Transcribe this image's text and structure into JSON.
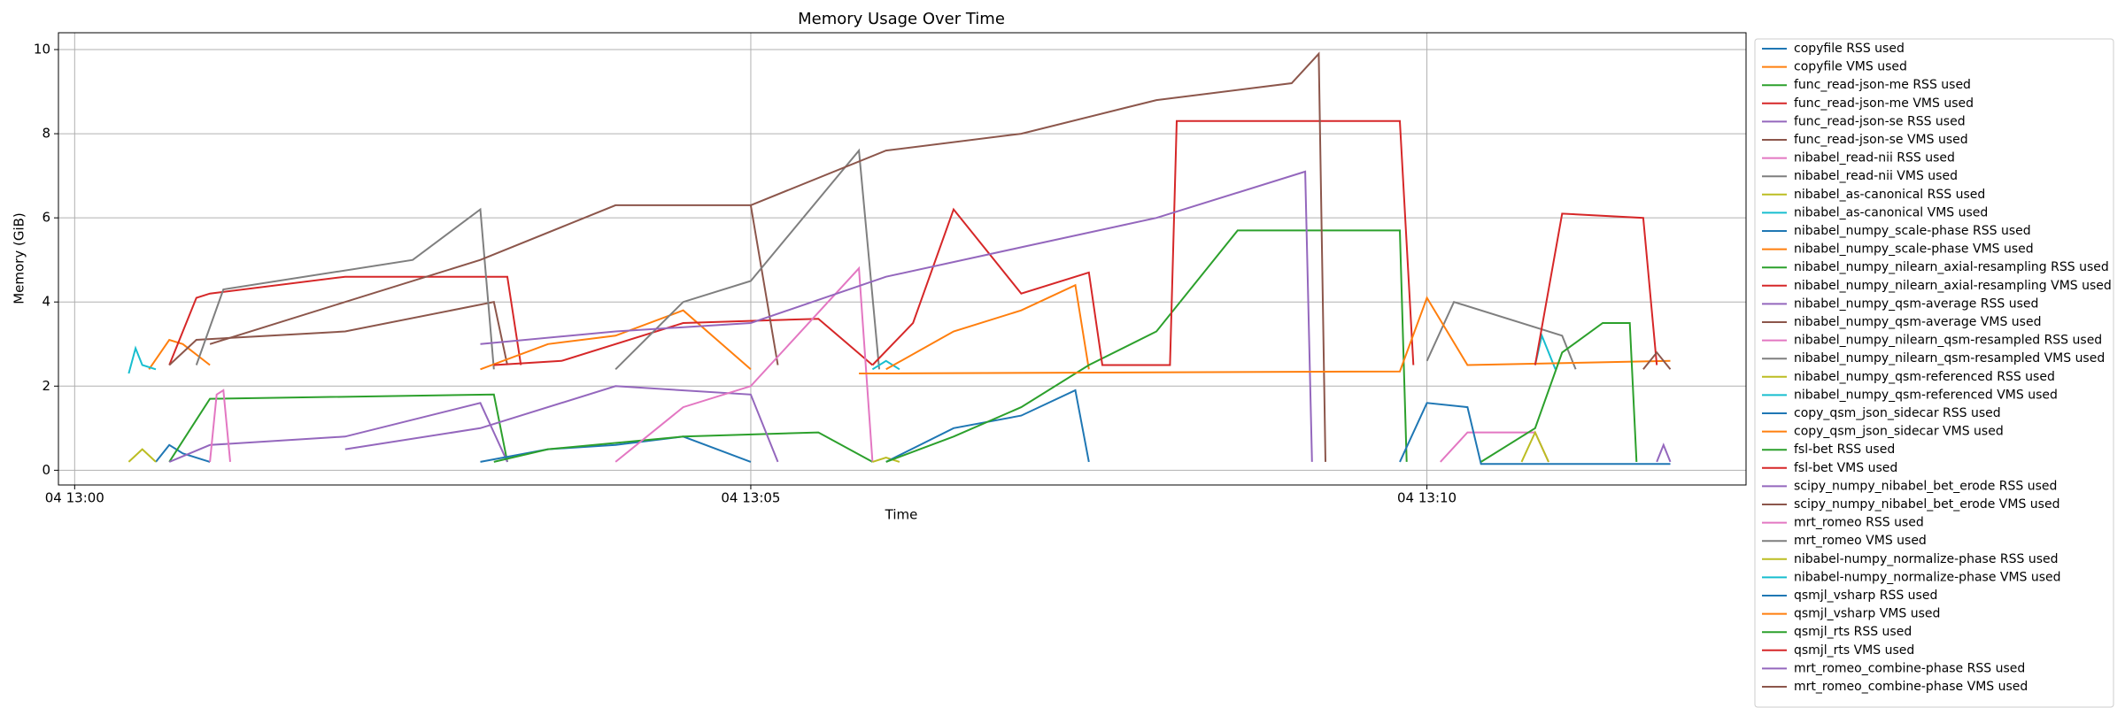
{
  "chart_data": {
    "type": "line",
    "title": "Memory Usage Over Time",
    "x_label": "Time",
    "y_label": "Memory (GiB)",
    "xlim": [
      -0.12,
      12.36
    ],
    "ylim": [
      -0.35,
      10.4
    ],
    "xticks": [
      {
        "value": 0,
        "label": "04 13:00"
      },
      {
        "value": 5,
        "label": "04 13:05"
      },
      {
        "value": 10,
        "label": "04 13:10"
      }
    ],
    "yticks": [
      0,
      2,
      4,
      6,
      8,
      10
    ],
    "grid": true,
    "legend": "outside right",
    "series": [
      {
        "name": "copyfile RSS used",
        "color": "#1f77b4",
        "x": [
          0.6,
          0.7,
          0.8,
          1.0
        ],
        "values": [
          0.2,
          0.6,
          0.4,
          0.2
        ]
      },
      {
        "name": "copyfile VMS used",
        "color": "#ff7f0e",
        "x": [
          0.55,
          0.7,
          0.8,
          1.0
        ],
        "values": [
          2.4,
          3.1,
          3.0,
          2.5
        ]
      },
      {
        "name": "func_read-json-me RSS used",
        "color": "#2ca02c",
        "x": [
          0.7,
          0.9,
          1.0,
          3.1,
          3.2
        ],
        "values": [
          0.2,
          1.2,
          1.7,
          1.8,
          0.2
        ]
      },
      {
        "name": "func_read-json-me VMS used",
        "color": "#d62728",
        "x": [
          0.7,
          0.9,
          1.0,
          2.0,
          3.2,
          3.3
        ],
        "values": [
          2.5,
          4.1,
          4.2,
          4.6,
          4.6,
          2.5
        ]
      },
      {
        "name": "func_read-json-se RSS used",
        "color": "#9467bd",
        "x": [
          0.7,
          1.0,
          2.0,
          3.0,
          3.2
        ],
        "values": [
          0.2,
          0.6,
          0.8,
          1.6,
          0.2
        ]
      },
      {
        "name": "func_read-json-se VMS used",
        "color": "#8c564b",
        "x": [
          0.7,
          0.9,
          2.0,
          3.1,
          3.2
        ],
        "values": [
          2.5,
          3.1,
          3.3,
          4.0,
          2.5
        ]
      },
      {
        "name": "nibabel_read-nii RSS used",
        "color": "#e377c2",
        "x": [
          1.0,
          1.05,
          1.1,
          1.15
        ],
        "values": [
          0.2,
          1.8,
          1.9,
          0.2
        ]
      },
      {
        "name": "nibabel_read-nii VMS used",
        "color": "#7f7f7f",
        "x": [
          0.9,
          1.1,
          2.5,
          3.0,
          3.1
        ],
        "values": [
          2.5,
          4.3,
          5.0,
          6.2,
          2.4
        ]
      },
      {
        "name": "nibabel_as-canonical RSS used",
        "color": "#bcbd22",
        "x": [
          0.4,
          0.5,
          0.6
        ],
        "values": [
          0.2,
          0.5,
          0.2
        ]
      },
      {
        "name": "nibabel_as-canonical VMS used",
        "color": "#17becf",
        "x": [
          0.4,
          0.45,
          0.5,
          0.6
        ],
        "values": [
          2.3,
          2.9,
          2.5,
          2.4
        ]
      },
      {
        "name": "nibabel_numpy_scale-phase RSS used",
        "color": "#1f77b4",
        "x": [
          3.0,
          3.5,
          4.0,
          4.5,
          5.0
        ],
        "values": [
          0.2,
          0.5,
          0.6,
          0.8,
          0.2
        ]
      },
      {
        "name": "nibabel_numpy_scale-phase VMS used",
        "color": "#ff7f0e",
        "x": [
          3.0,
          3.5,
          4.0,
          4.5,
          5.0
        ],
        "values": [
          2.4,
          3.0,
          3.2,
          3.8,
          2.4
        ]
      },
      {
        "name": "nibabel_numpy_nilearn_axial-resampling RSS used",
        "color": "#2ca02c",
        "x": [
          3.1,
          3.5,
          4.5,
          5.5,
          5.9
        ],
        "values": [
          0.2,
          0.5,
          0.8,
          0.9,
          0.2
        ]
      },
      {
        "name": "nibabel_numpy_nilearn_axial-resampling VMS used",
        "color": "#d62728",
        "x": [
          3.1,
          3.6,
          4.5,
          5.5,
          5.9
        ],
        "values": [
          2.5,
          2.6,
          3.5,
          3.6,
          2.5
        ]
      },
      {
        "name": "nibabel_numpy_qsm-average RSS used",
        "color": "#9467bd",
        "x": [
          2.0,
          3.0,
          4.0,
          5.0,
          5.2
        ],
        "values": [
          0.5,
          1.0,
          2.0,
          1.8,
          0.2
        ]
      },
      {
        "name": "nibabel_numpy_qsm-average VMS used",
        "color": "#8c564b",
        "x": [
          1.0,
          2.0,
          3.0,
          4.0,
          5.0,
          5.2
        ],
        "values": [
          3.0,
          4.0,
          5.0,
          6.3,
          6.3,
          2.5
        ]
      },
      {
        "name": "nibabel_numpy_nilearn_qsm-resampled RSS used",
        "color": "#e377c2",
        "x": [
          4.0,
          4.5,
          5.0,
          5.8,
          5.9
        ],
        "values": [
          0.2,
          1.5,
          2.0,
          4.8,
          0.2
        ]
      },
      {
        "name": "nibabel_numpy_nilearn_qsm-resampled VMS used",
        "color": "#7f7f7f",
        "x": [
          4.0,
          4.5,
          5.0,
          5.8,
          5.95
        ],
        "values": [
          2.4,
          4.0,
          4.5,
          7.6,
          2.4
        ]
      },
      {
        "name": "nibabel_numpy_qsm-referenced RSS used",
        "color": "#bcbd22",
        "x": [
          5.9,
          6.0,
          6.1
        ],
        "values": [
          0.2,
          0.3,
          0.2
        ]
      },
      {
        "name": "nibabel_numpy_qsm-referenced VMS used",
        "color": "#17becf",
        "x": [
          5.9,
          6.0,
          6.1
        ],
        "values": [
          2.4,
          2.6,
          2.4
        ]
      },
      {
        "name": "copy_qsm_json_sidecar RSS used",
        "color": "#1f77b4",
        "x": [
          6.0,
          6.5,
          7.0,
          7.4,
          7.5
        ],
        "values": [
          0.2,
          1.0,
          1.3,
          1.9,
          0.2
        ]
      },
      {
        "name": "copy_qsm_json_sidecar VMS used",
        "color": "#ff7f0e",
        "x": [
          6.0,
          6.5,
          7.0,
          7.4,
          7.5
        ],
        "values": [
          2.4,
          3.3,
          3.8,
          4.4,
          2.4
        ]
      },
      {
        "name": "fsl-bet RSS used",
        "color": "#2ca02c",
        "x": [
          6.0,
          6.5,
          7.0,
          7.5,
          8.0,
          8.6,
          9.8,
          9.85
        ],
        "values": [
          0.2,
          0.8,
          1.5,
          2.5,
          3.3,
          5.7,
          5.7,
          0.2
        ]
      },
      {
        "name": "fsl-bet VMS used",
        "color": "#d62728",
        "x": [
          5.9,
          6.2,
          6.5,
          7.0,
          7.5,
          7.6,
          8.1,
          8.15,
          9.8,
          9.9
        ],
        "values": [
          2.5,
          3.5,
          6.2,
          4.2,
          4.7,
          2.5,
          2.5,
          8.3,
          8.3,
          2.5
        ]
      },
      {
        "name": "scipy_numpy_nibabel_bet_erode RSS used",
        "color": "#9467bd",
        "x": [
          3.0,
          4.0,
          5.0,
          6.0,
          7.0,
          8.0,
          9.1,
          9.15
        ],
        "values": [
          3.0,
          3.3,
          3.5,
          4.6,
          5.3,
          6.0,
          7.1,
          0.2
        ]
      },
      {
        "name": "scipy_numpy_nibabel_bet_erode VMS used",
        "color": "#8c564b",
        "x": [
          5.0,
          6.0,
          7.0,
          8.0,
          9.0,
          9.2,
          9.25
        ],
        "values": [
          6.3,
          7.6,
          8.0,
          8.8,
          9.2,
          9.9,
          0.2
        ]
      },
      {
        "name": "mrt_romeo RSS used",
        "color": "#e377c2",
        "x": [
          10.1,
          10.3,
          10.8,
          10.9
        ],
        "values": [
          0.2,
          0.9,
          0.9,
          0.2
        ]
      },
      {
        "name": "mrt_romeo VMS used",
        "color": "#7f7f7f",
        "x": [
          10.0,
          10.2,
          11.0,
          11.1
        ],
        "values": [
          2.6,
          4.0,
          3.2,
          2.4
        ]
      },
      {
        "name": "nibabel-numpy_normalize-phase RSS used",
        "color": "#bcbd22",
        "x": [
          10.7,
          10.8,
          10.9
        ],
        "values": [
          0.2,
          0.9,
          0.2
        ]
      },
      {
        "name": "nibabel-numpy_normalize-phase VMS used",
        "color": "#17becf",
        "x": [
          10.8,
          10.85,
          10.95
        ],
        "values": [
          2.5,
          3.2,
          2.4
        ]
      },
      {
        "name": "qsmjl_vsharp RSS used",
        "color": "#1f77b4",
        "x": [
          9.8,
          10.0,
          10.3,
          10.4,
          11.8
        ],
        "values": [
          0.2,
          1.6,
          1.5,
          0.15,
          0.15
        ]
      },
      {
        "name": "qsmjl_vsharp VMS used",
        "color": "#ff7f0e",
        "x": [
          5.8,
          9.8,
          10.0,
          10.3,
          11.8
        ],
        "values": [
          2.3,
          2.35,
          4.1,
          2.5,
          2.6
        ]
      },
      {
        "name": "qsmjl_rts RSS used",
        "color": "#2ca02c",
        "x": [
          10.4,
          10.8,
          11.0,
          11.3,
          11.5,
          11.55
        ],
        "values": [
          0.2,
          1.0,
          2.8,
          3.5,
          3.5,
          0.2
        ]
      },
      {
        "name": "qsmjl_rts VMS used",
        "color": "#d62728",
        "x": [
          10.8,
          11.0,
          11.6,
          11.7
        ],
        "values": [
          2.5,
          6.1,
          6.0,
          2.5
        ]
      },
      {
        "name": "mrt_romeo_combine-phase RSS used",
        "color": "#9467bd",
        "x": [
          11.7,
          11.75,
          11.8
        ],
        "values": [
          0.2,
          0.6,
          0.2
        ]
      },
      {
        "name": "mrt_romeo_combine-phase VMS used",
        "color": "#8c564b",
        "x": [
          11.6,
          11.7,
          11.8
        ],
        "values": [
          2.4,
          2.8,
          2.4
        ]
      }
    ]
  }
}
